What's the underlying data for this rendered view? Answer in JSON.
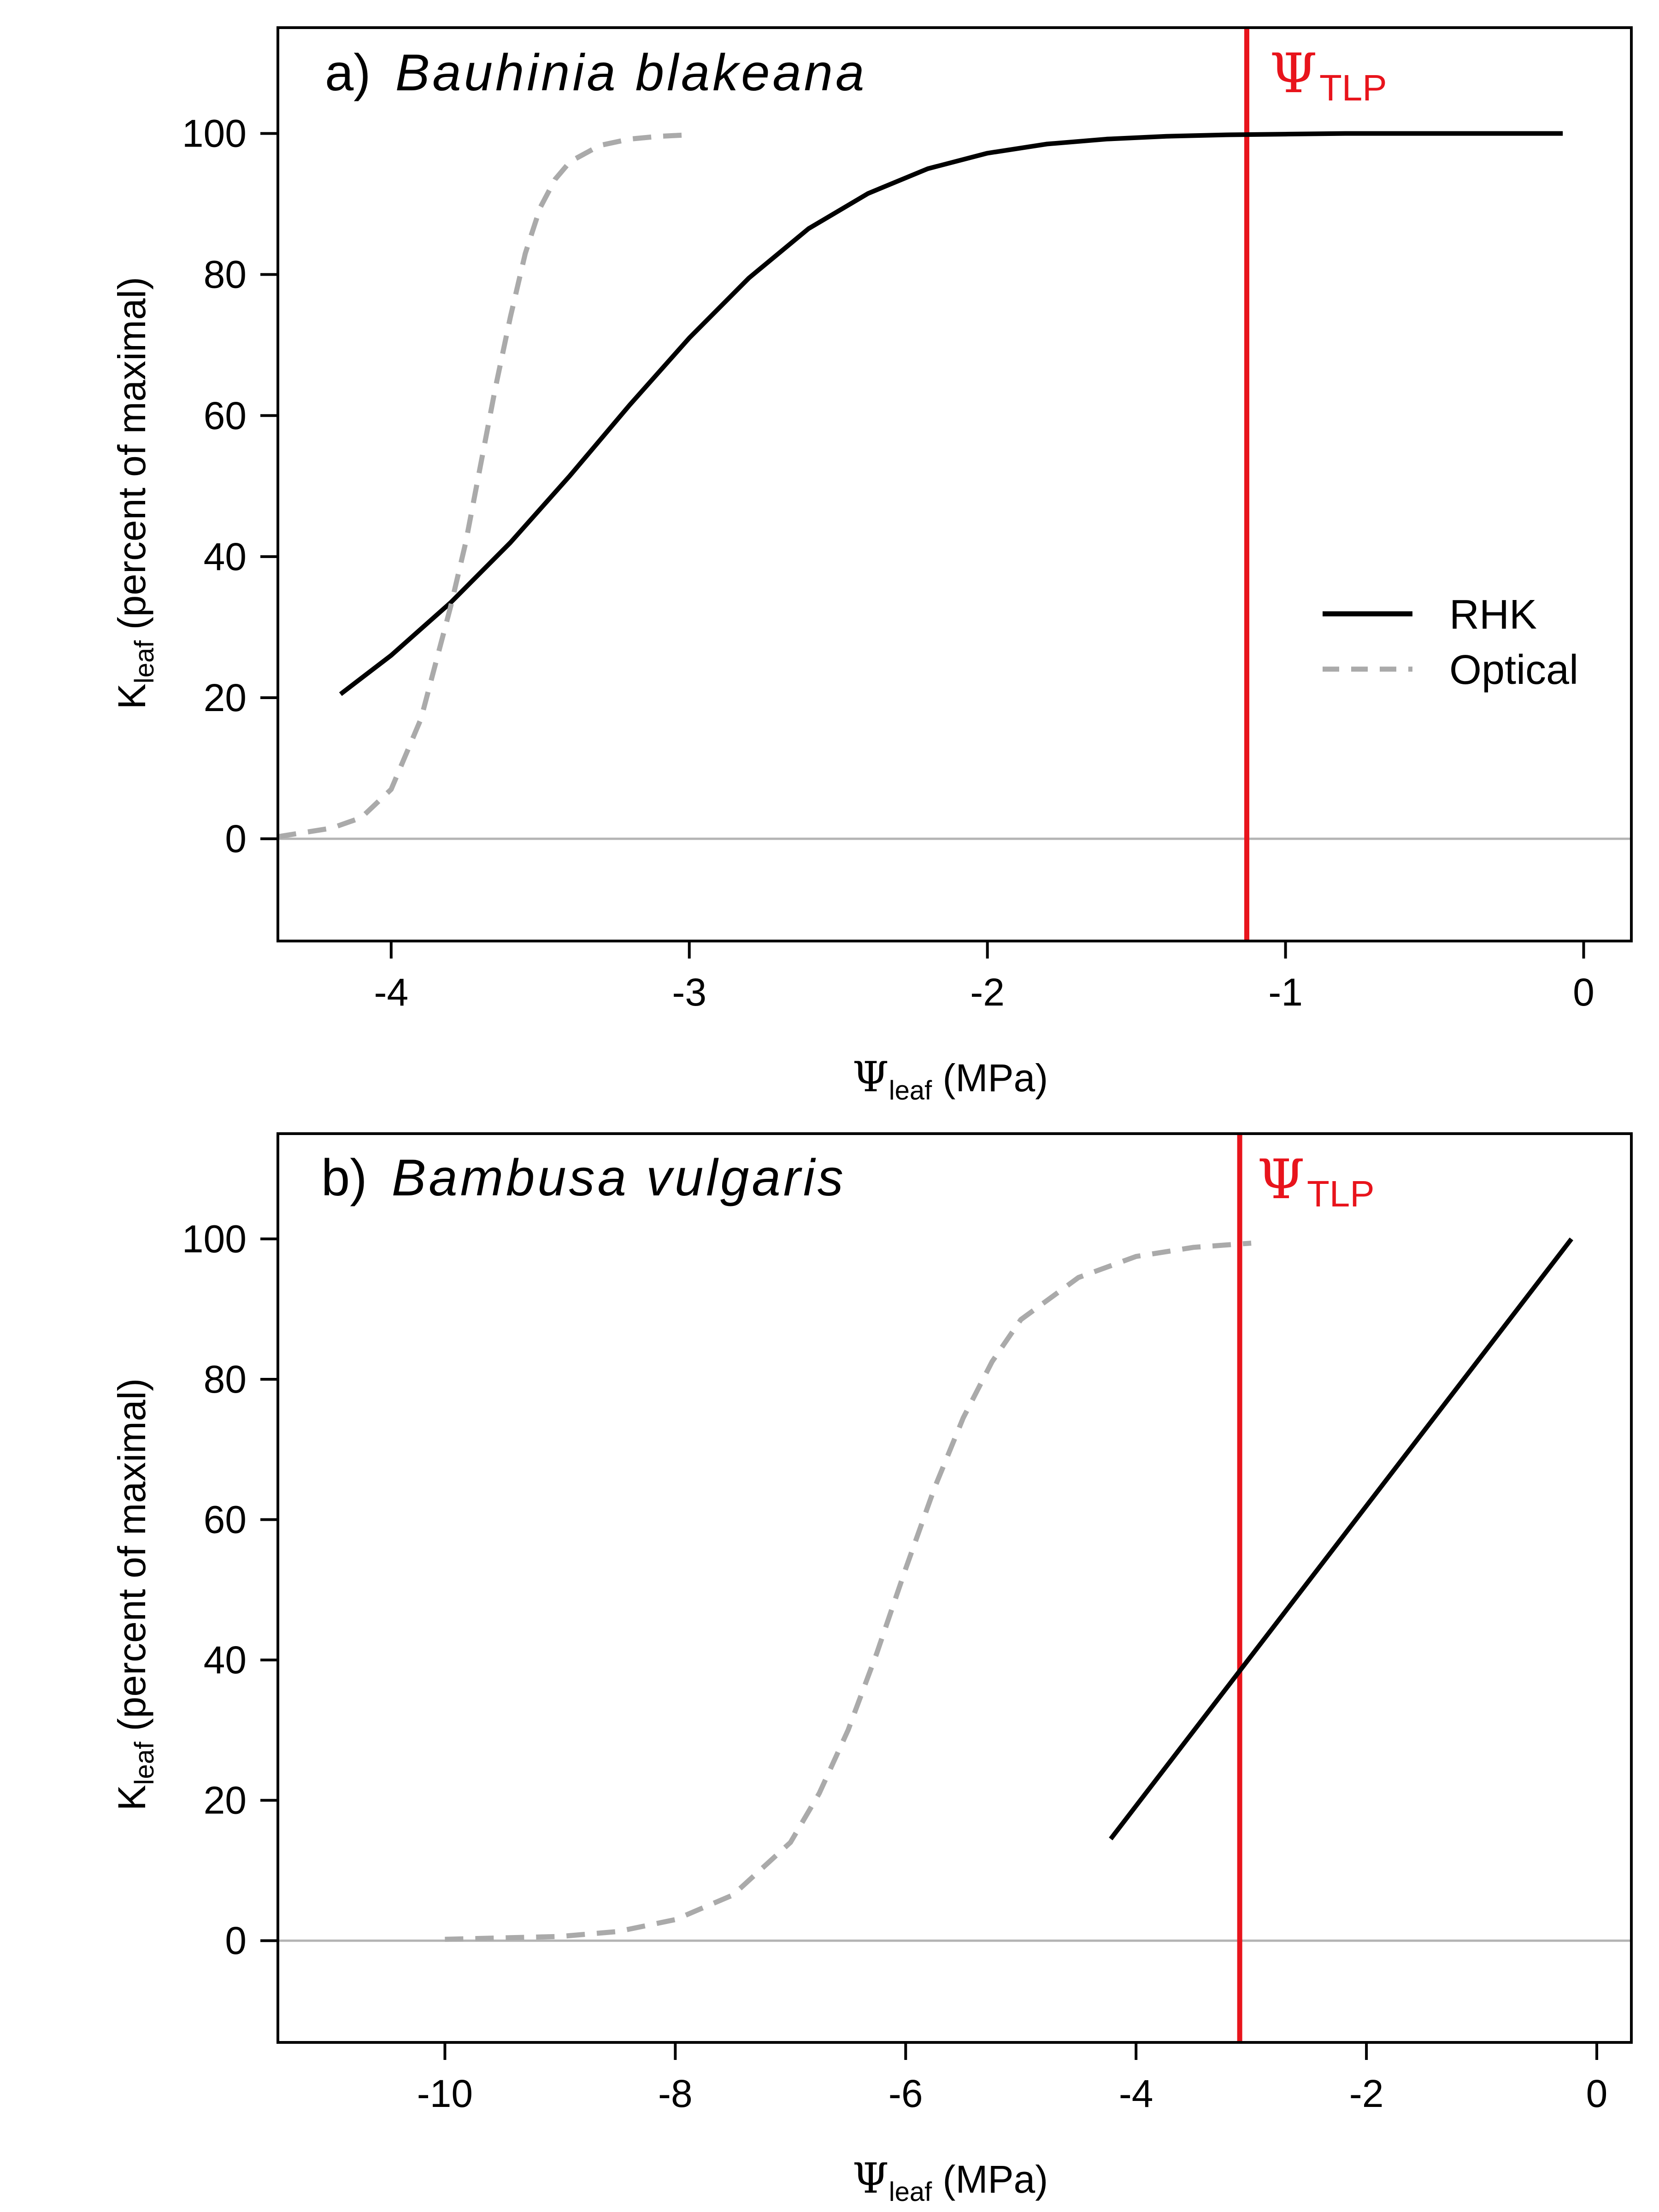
{
  "chart_data": [
    {
      "type": "line",
      "panel_label": "a)",
      "species": "Bauhinia blakeana",
      "xlabel_symbol": "Ψ",
      "xlabel_sub": "leaf",
      "xlabel_rest": " (MPa)",
      "ylabel_main": "K",
      "ylabel_sub": "leaf",
      "ylabel_rest": " (percent of maximal)",
      "xlim": [
        -4.38,
        0.16
      ],
      "ylim": [
        -14.5,
        115
      ],
      "x_ticks": [
        -4,
        -3,
        -2,
        -1,
        0
      ],
      "x_tick_labels": [
        "-4",
        "-3",
        "-2",
        "-1",
        "0"
      ],
      "y_ticks": [
        0,
        20,
        40,
        60,
        80,
        100
      ],
      "y_tick_labels": [
        "0",
        "20",
        "40",
        "60",
        "80",
        "100"
      ],
      "zero_line": true,
      "tlp": {
        "x": -1.13,
        "symbol": "Ψ",
        "sub": "TLP",
        "color": "#e8141c"
      },
      "legend": {
        "position": "right",
        "items": [
          {
            "label": "RHK",
            "style": "solid",
            "color": "#000000"
          },
          {
            "label": "Optical",
            "style": "dashed",
            "color": "#aaaaaa"
          }
        ]
      },
      "series": [
        {
          "name": "RHK",
          "style": "solid",
          "color": "#000000",
          "x": [
            -4.17,
            -4.0,
            -3.8,
            -3.6,
            -3.4,
            -3.2,
            -3.0,
            -2.8,
            -2.6,
            -2.4,
            -2.2,
            -2.0,
            -1.8,
            -1.6,
            -1.4,
            -1.2,
            -1.0,
            -0.8,
            -0.6,
            -0.4,
            -0.2,
            -0.07
          ],
          "y": [
            20.5,
            26,
            33.5,
            42,
            51.5,
            61.5,
            71,
            79.5,
            86.5,
            91.5,
            95,
            97.2,
            98.5,
            99.2,
            99.6,
            99.8,
            99.9,
            100,
            100,
            100,
            100,
            100
          ]
        },
        {
          "name": "Optical",
          "style": "dashed",
          "color": "#aaaaaa",
          "x": [
            -4.38,
            -4.2,
            -4.1,
            -4.0,
            -3.9,
            -3.8,
            -3.75,
            -3.7,
            -3.65,
            -3.6,
            -3.55,
            -3.5,
            -3.45,
            -3.4,
            -3.3,
            -3.2,
            -3.1,
            -3.0
          ],
          "y": [
            0.3,
            1.5,
            3,
            7,
            17,
            33,
            42,
            53,
            64,
            74,
            83,
            89.5,
            93.5,
            96,
            98.3,
            99.2,
            99.6,
            99.8
          ]
        }
      ]
    },
    {
      "type": "line",
      "panel_label": "b)",
      "species": "Bambusa vulgaris",
      "xlabel_symbol": "Ψ",
      "xlabel_sub": "leaf",
      "xlabel_rest": " (MPa)",
      "ylabel_main": "K",
      "ylabel_sub": "leaf",
      "ylabel_rest": " (percent of maximal)",
      "xlim": [
        -11.45,
        0.3
      ],
      "ylim": [
        -14.5,
        115
      ],
      "x_ticks": [
        -10,
        -8,
        -6,
        -4,
        -2,
        0
      ],
      "x_tick_labels": [
        "-10",
        "-8",
        "-6",
        "-4",
        "-2",
        "0"
      ],
      "y_ticks": [
        0,
        20,
        40,
        60,
        80,
        100
      ],
      "y_tick_labels": [
        "0",
        "20",
        "40",
        "60",
        "80",
        "100"
      ],
      "zero_line": true,
      "tlp": {
        "x": -3.1,
        "symbol": "Ψ",
        "sub": "TLP",
        "color": "#e8141c"
      },
      "series": [
        {
          "name": "RHK",
          "style": "solid",
          "color": "#000000",
          "x": [
            -4.22,
            -0.22
          ],
          "y": [
            14.5,
            100
          ]
        },
        {
          "name": "Optical",
          "style": "dashed",
          "color": "#aaaaaa",
          "x": [
            -10.0,
            -9.0,
            -8.5,
            -8.0,
            -7.5,
            -7.0,
            -6.75,
            -6.5,
            -6.25,
            -6.0,
            -5.75,
            -5.5,
            -5.25,
            -5.0,
            -4.5,
            -4.0,
            -3.5,
            -3.0
          ],
          "y": [
            0.2,
            0.6,
            1.3,
            3,
            6.5,
            14,
            21,
            30,
            41,
            53,
            64.5,
            74.5,
            82.5,
            88.5,
            94.5,
            97.5,
            98.8,
            99.4
          ]
        }
      ]
    }
  ]
}
